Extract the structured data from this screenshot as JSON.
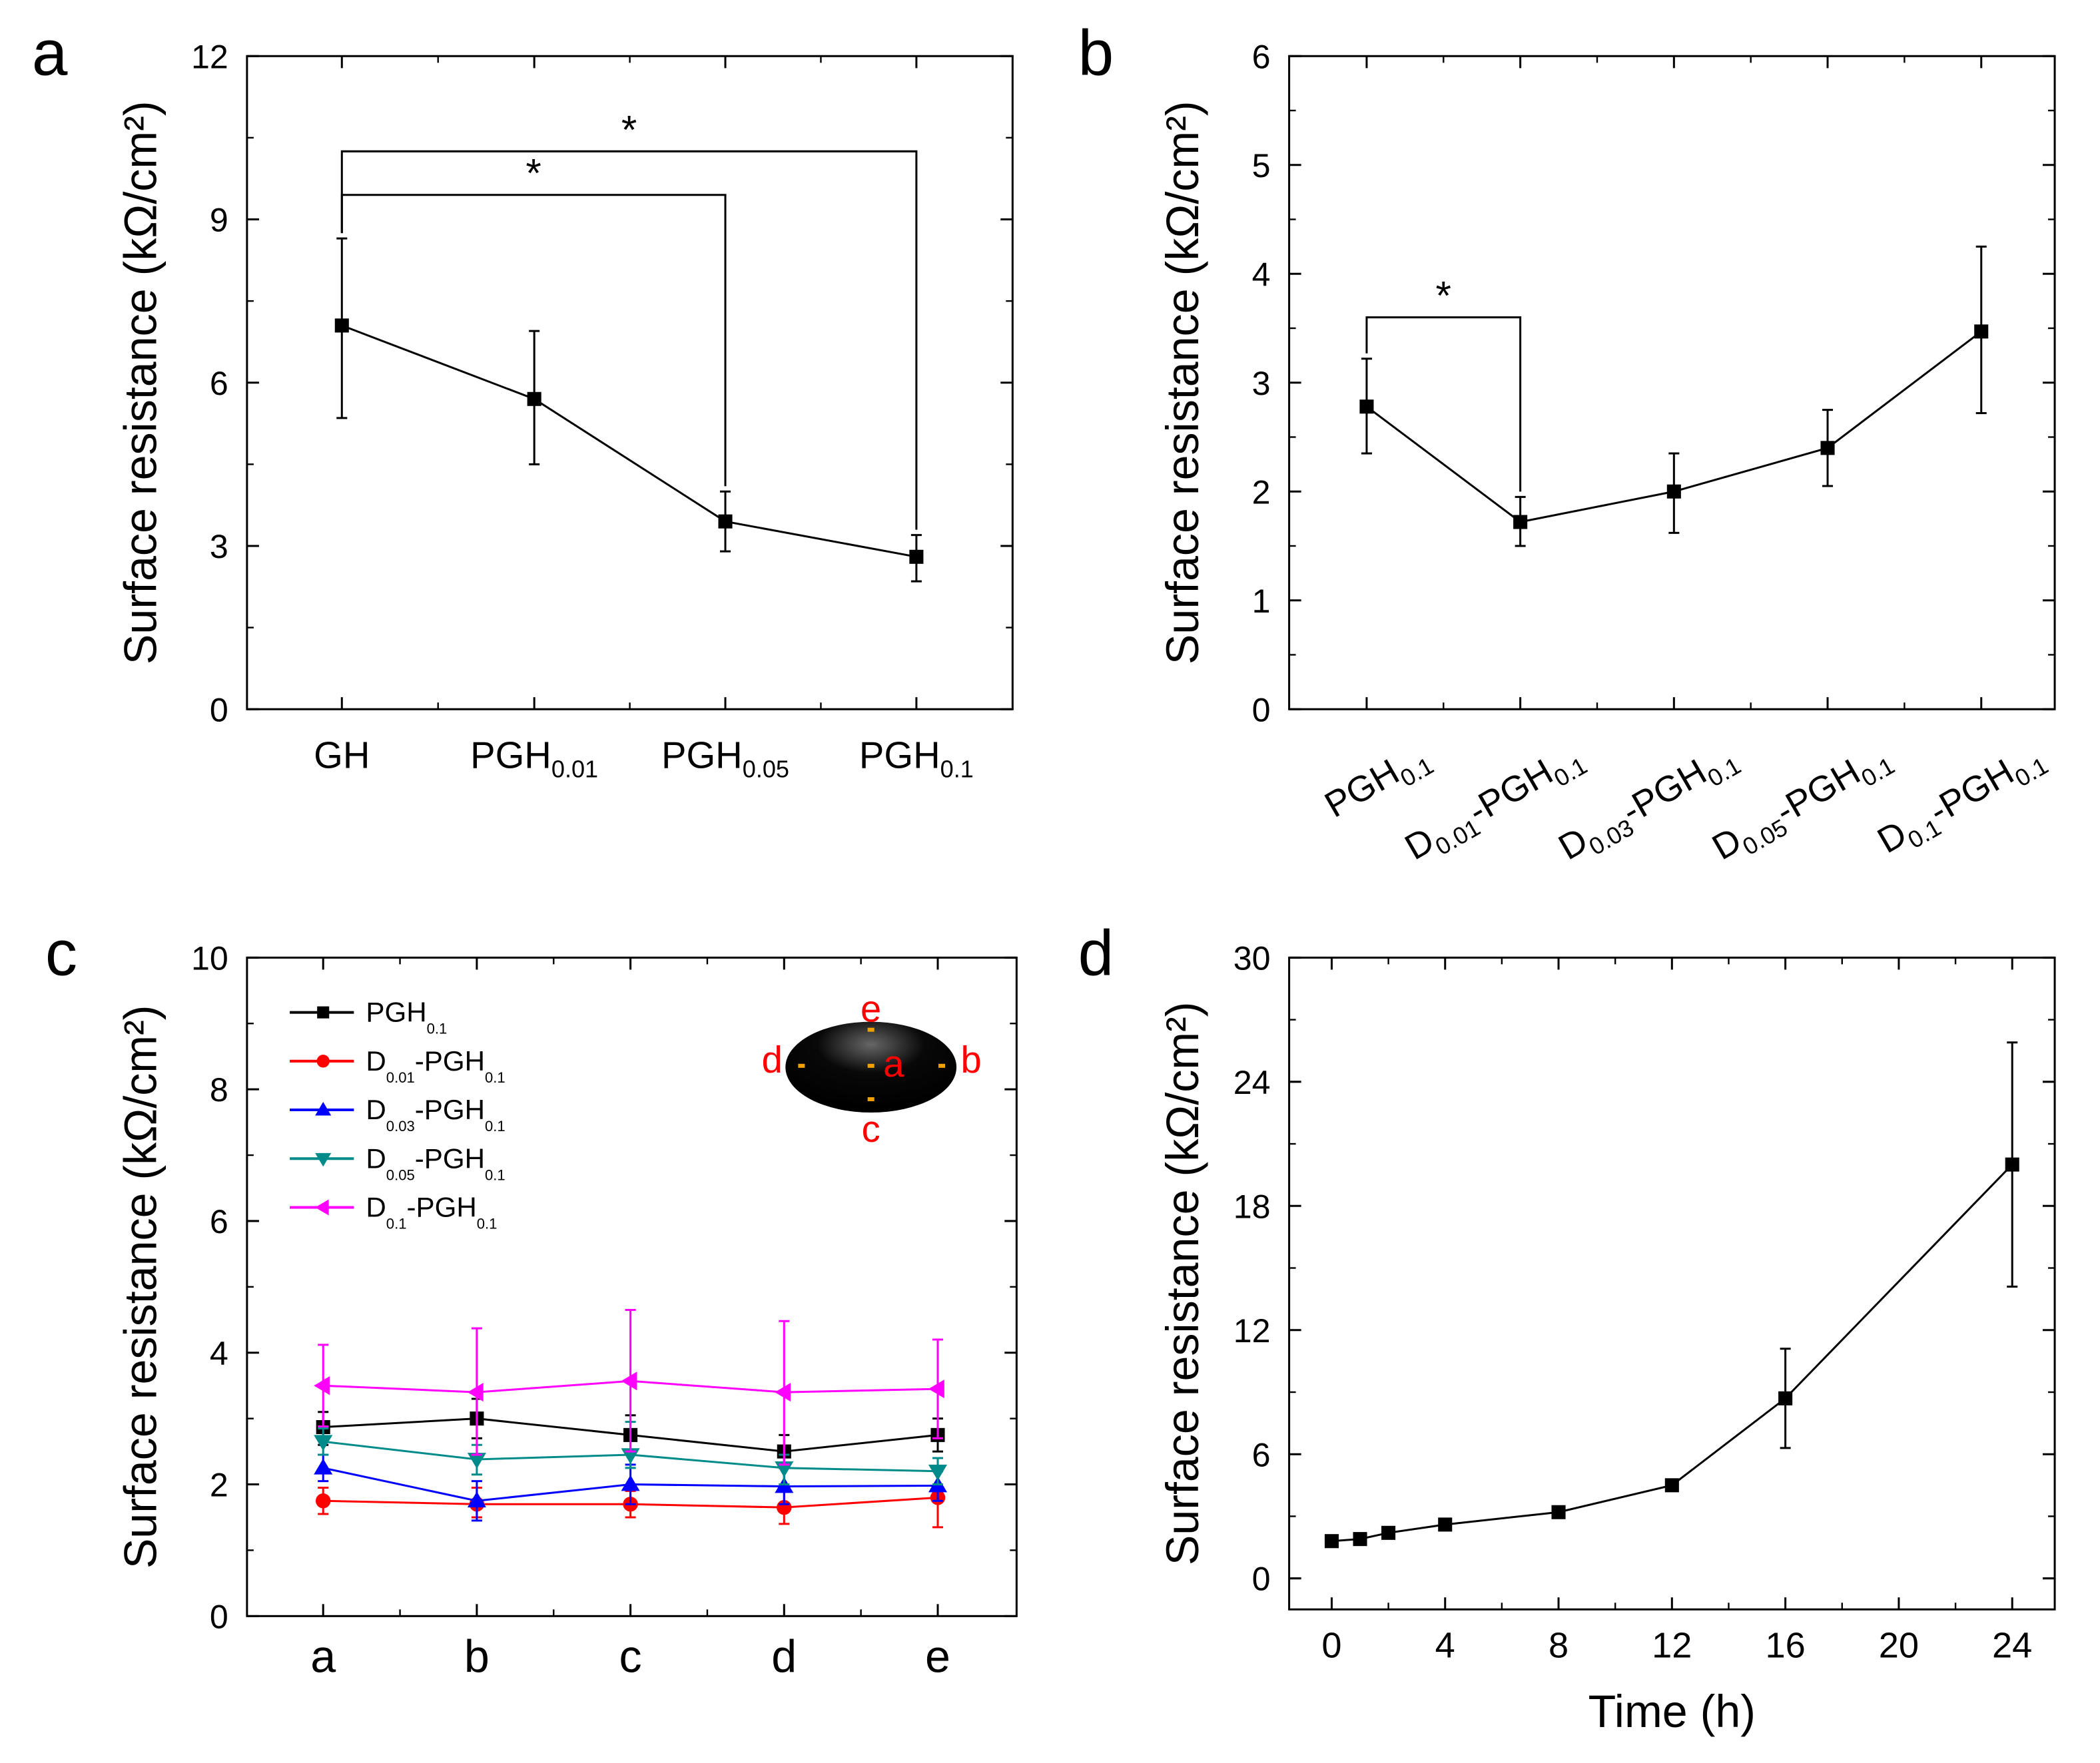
{
  "chart_data": [
    {
      "panel": "a",
      "type": "line",
      "ylabel": "Surface resistance (kΩ/cm²)",
      "ylim": [
        0,
        12
      ],
      "yticks": [
        0,
        3,
        6,
        9,
        12
      ],
      "categories": [
        "GH",
        "PGH0.01",
        "PGH0.05",
        "PGH0.1"
      ],
      "series": [
        {
          "name": "",
          "color": "#000000",
          "marker": "square",
          "values": [
            7.05,
            5.7,
            3.45,
            2.8
          ],
          "err_low": [
            5.35,
            4.5,
            2.9,
            2.35
          ],
          "err_high": [
            8.65,
            6.95,
            4.0,
            3.2
          ]
        }
      ],
      "significance": [
        {
          "from": 0,
          "to": 2,
          "level": 9.45,
          "label": "*"
        },
        {
          "from": 0,
          "to": 3,
          "level": 10.25,
          "label": "*"
        }
      ]
    },
    {
      "panel": "b",
      "type": "line",
      "ylabel": "Surface resistance (kΩ/cm²)",
      "ylim": [
        0,
        6
      ],
      "yticks": [
        0,
        1,
        2,
        3,
        4,
        5,
        6
      ],
      "categories": [
        "PGH0.1",
        "D0.01-PGH0.1",
        "D0.03-PGH0.1",
        "D0.05-PGH0.1",
        "D0.1-PGH0.1"
      ],
      "series": [
        {
          "name": "",
          "color": "#000000",
          "marker": "square",
          "values": [
            2.78,
            1.72,
            2.0,
            2.4,
            3.47
          ],
          "err_low": [
            2.35,
            1.5,
            1.62,
            2.05,
            2.72
          ],
          "err_high": [
            3.22,
            1.95,
            2.35,
            2.75,
            4.25
          ]
        }
      ],
      "significance": [
        {
          "from": 0,
          "to": 1,
          "level": 3.6,
          "label": "*"
        }
      ]
    },
    {
      "panel": "c",
      "type": "line",
      "ylabel": "Surface resistance (kΩ/cm²)",
      "ylim": [
        0,
        10
      ],
      "yticks": [
        0,
        2,
        4,
        6,
        8,
        10
      ],
      "categories": [
        "a",
        "b",
        "c",
        "d",
        "e"
      ],
      "legend": "top-left",
      "inset_labels": [
        "a",
        "b",
        "c",
        "d",
        "e"
      ],
      "series": [
        {
          "name": "PGH0.1",
          "color": "#000000",
          "marker": "square",
          "values": [
            2.87,
            3.0,
            2.75,
            2.5,
            2.75
          ],
          "err_low": [
            2.6,
            2.7,
            2.45,
            2.25,
            2.5
          ],
          "err_high": [
            3.1,
            3.3,
            3.05,
            2.75,
            3.0
          ]
        },
        {
          "name": "D0.01-PGH0.1",
          "color": "#ff0000",
          "marker": "circle",
          "values": [
            1.75,
            1.7,
            1.7,
            1.65,
            1.8
          ],
          "err_low": [
            1.55,
            1.5,
            1.5,
            1.4,
            1.35
          ],
          "err_high": [
            1.95,
            1.95,
            1.9,
            1.95,
            2.25
          ]
        },
        {
          "name": "D0.03-PGH0.1",
          "color": "#0000ff",
          "marker": "triangle-up",
          "values": [
            2.25,
            1.75,
            2.0,
            1.97,
            1.98
          ],
          "err_low": [
            2.05,
            1.45,
            1.7,
            1.7,
            1.75
          ],
          "err_high": [
            2.45,
            2.05,
            2.3,
            2.25,
            2.2
          ]
        },
        {
          "name": "D0.05-PGH0.1",
          "color": "#008b8b",
          "marker": "triangle-down",
          "values": [
            2.65,
            2.38,
            2.45,
            2.25,
            2.2
          ],
          "err_low": [
            2.45,
            2.15,
            2.25,
            2.0,
            2.0
          ],
          "err_high": [
            2.85,
            2.6,
            2.95,
            2.45,
            2.4
          ]
        },
        {
          "name": "D0.1-PGH0.1",
          "color": "#ff00ff",
          "marker": "triangle-left",
          "values": [
            3.5,
            3.4,
            3.57,
            3.4,
            3.45
          ],
          "err_low": [
            2.88,
            2.45,
            2.5,
            2.3,
            2.7
          ],
          "err_high": [
            4.12,
            4.37,
            4.65,
            4.48,
            4.2
          ]
        }
      ]
    },
    {
      "panel": "d",
      "type": "line",
      "xlabel": "Time (h)",
      "ylabel": "Surface resistance (kΩ/cm²)",
      "ylim": [
        -1.5,
        30
      ],
      "xlim": [
        -1.5,
        25.5
      ],
      "yticks": [
        0,
        6,
        12,
        18,
        24,
        30
      ],
      "xticks": [
        0,
        4,
        8,
        12,
        16,
        20,
        24
      ],
      "series": [
        {
          "name": "",
          "color": "#000000",
          "marker": "square",
          "x": [
            0,
            1,
            2,
            4,
            8,
            12,
            16,
            24
          ],
          "values": [
            1.8,
            1.9,
            2.2,
            2.6,
            3.2,
            4.5,
            8.7,
            20.0
          ],
          "err_low": [
            1.8,
            1.9,
            2.2,
            2.6,
            3.2,
            4.5,
            6.3,
            14.1
          ],
          "err_high": [
            1.8,
            1.9,
            2.2,
            2.6,
            3.2,
            4.5,
            11.1,
            25.9
          ]
        }
      ]
    }
  ],
  "panel_labels": [
    "a",
    "b",
    "c",
    "d"
  ]
}
